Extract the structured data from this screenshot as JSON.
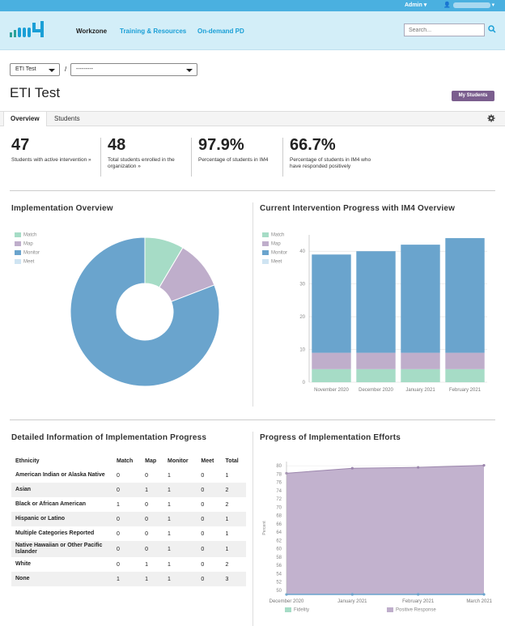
{
  "topbar": {
    "admin_label": "Admin ▾"
  },
  "header": {
    "nav": {
      "workzone": "Workzone",
      "training": "Training & Resources",
      "ondemand": "On-demand PD"
    },
    "search_placeholder": "Search..."
  },
  "selectors": {
    "org": "ETI Test",
    "sub": "---------"
  },
  "page": {
    "title": "ETI Test",
    "my_students": "My Students"
  },
  "tabs": {
    "overview": "Overview",
    "students": "Students"
  },
  "stats": [
    {
      "value": "47",
      "label": "Students with active intervention »"
    },
    {
      "value": "48",
      "label": "Total students enrolled in the organization »"
    },
    {
      "value": "97.9%",
      "label": "Percentage of students in IM4"
    },
    {
      "value": "66.7%",
      "label": "Percentage of students in IM4 who have responded positively"
    }
  ],
  "sections": {
    "impl_overview": "Implementation Overview",
    "progress_im4": "Current Intervention Progress with IM4 Overview",
    "detailed": "Detailed Information of Implementation Progress",
    "efforts": "Progress of Implementation Efforts"
  },
  "colors": {
    "match": "#a6dcc6",
    "map": "#bfaecb",
    "monitor": "#6aa4cd",
    "meet": "#cfe4f2"
  },
  "legend": [
    "Match",
    "Map",
    "Monitor",
    "Meet"
  ],
  "chart_data": [
    {
      "type": "pie",
      "title": "Implementation Overview",
      "labels": [
        "Match",
        "Map",
        "Monitor",
        "Meet"
      ],
      "values": [
        4,
        5,
        38,
        0
      ]
    },
    {
      "type": "bar",
      "title": "Current Intervention Progress with IM4 Overview",
      "categories": [
        "November 2020",
        "December 2020",
        "January 2021",
        "February 2021"
      ],
      "series": [
        {
          "name": "Match",
          "values": [
            4,
            4,
            4,
            4
          ]
        },
        {
          "name": "Map",
          "values": [
            5,
            5,
            5,
            5
          ]
        },
        {
          "name": "Monitor",
          "values": [
            30,
            31,
            33,
            35
          ]
        },
        {
          "name": "Meet",
          "values": [
            0,
            0,
            0,
            0
          ]
        }
      ],
      "yticks": [
        "0",
        "10",
        "20",
        "30",
        "40"
      ],
      "ylim": [
        0,
        45
      ]
    },
    {
      "type": "area",
      "title": "Progress of Implementation Efforts",
      "categories": [
        "December 2020",
        "January 2021",
        "February 2021",
        "March 2021"
      ],
      "ylabel": "Percent",
      "series": [
        {
          "name": "Fidelity",
          "values": [
            49,
            49,
            49,
            49
          ]
        },
        {
          "name": "Positive Response",
          "values": [
            78.2,
            79.4,
            79.6,
            80.1
          ]
        }
      ],
      "yticks": [
        "50",
        "52",
        "54",
        "56",
        "58",
        "60",
        "62",
        "64",
        "66",
        "68",
        "70",
        "72",
        "74",
        "76",
        "78",
        "80"
      ],
      "ylim": [
        49,
        81
      ]
    }
  ],
  "table": {
    "headers": [
      "Ethnicity",
      "Match",
      "Map",
      "Monitor",
      "Meet",
      "Total"
    ],
    "rows": [
      [
        "American Indian or Alaska Native",
        "0",
        "0",
        "1",
        "0",
        "1"
      ],
      [
        "Asian",
        "0",
        "1",
        "1",
        "0",
        "2"
      ],
      [
        "Black or African American",
        "1",
        "0",
        "1",
        "0",
        "2"
      ],
      [
        "Hispanic or Latino",
        "0",
        "0",
        "1",
        "0",
        "1"
      ],
      [
        "Multiple Categories Reported",
        "0",
        "0",
        "1",
        "0",
        "1"
      ],
      [
        "Native Hawaiian or Other Pacific Islander",
        "0",
        "0",
        "1",
        "0",
        "1"
      ],
      [
        "White",
        "0",
        "1",
        "1",
        "0",
        "2"
      ],
      [
        "None",
        "1",
        "1",
        "1",
        "0",
        "3"
      ]
    ]
  }
}
